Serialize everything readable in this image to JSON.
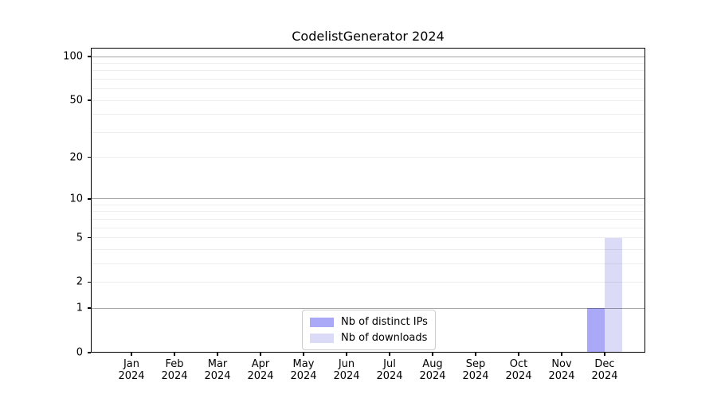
{
  "chart_data": {
    "type": "bar",
    "title": "CodelistGenerator 2024",
    "categories": [
      "Jan",
      "Feb",
      "Mar",
      "Apr",
      "May",
      "Jun",
      "Jul",
      "Aug",
      "Sep",
      "Oct",
      "Nov",
      "Dec"
    ],
    "x_year": "2024",
    "series": [
      {
        "name": "Nb of distinct IPs",
        "color": "#a9a9f7",
        "values": [
          0,
          0,
          0,
          0,
          0,
          0,
          0,
          0,
          0,
          0,
          0,
          1
        ]
      },
      {
        "name": "Nb of downloads",
        "color": "#dbdbf8",
        "values": [
          0,
          0,
          0,
          0,
          0,
          0,
          0,
          0,
          0,
          0,
          0,
          5
        ]
      }
    ],
    "yscale": "log1p",
    "ylim": [
      0,
      100
    ],
    "yticks": [
      0,
      1,
      2,
      5,
      10,
      20,
      50,
      100
    ],
    "major_gridlines": [
      1,
      10,
      100
    ],
    "minor_gridlines": [
      2,
      3,
      4,
      5,
      6,
      7,
      8,
      9,
      20,
      30,
      40,
      50,
      60,
      70,
      80,
      90
    ],
    "grid": true,
    "legend_position": "lower-center",
    "axis_color": "#000000",
    "major_grid_color": "rgba(0,0,0,0.35)",
    "minor_grid_color": "rgba(0,0,0,0.07)"
  }
}
